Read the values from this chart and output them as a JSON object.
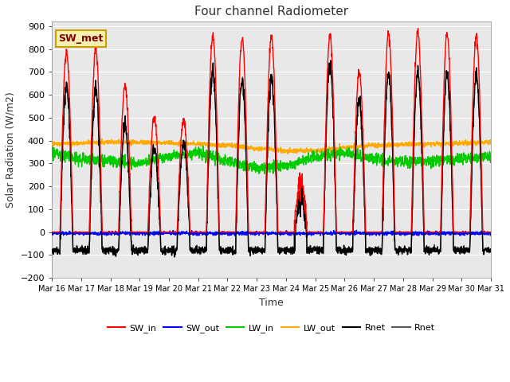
{
  "title": "Four channel Radiometer",
  "xlabel": "Time",
  "ylabel": "Solar Radiation (W/m2)",
  "ylim": [
    -200,
    920
  ],
  "yticks": [
    -200,
    -100,
    0,
    100,
    200,
    300,
    400,
    500,
    600,
    700,
    800,
    900
  ],
  "x_labels": [
    "Mar 16",
    "Mar 17",
    "Mar 18",
    "Mar 19",
    "Mar 20",
    "Mar 21",
    "Mar 22",
    "Mar 23",
    "Mar 24",
    "Mar 25",
    "Mar 26",
    "Mar 27",
    "Mar 28",
    "Mar 29",
    "Mar 30",
    "Mar 31"
  ],
  "annotation_label": "SW_met",
  "annotation_border_color": "#c8a000",
  "annotation_text_color": "#800000",
  "annotation_bg": "#f5f0b0",
  "plot_bg_color": "#e8e8e8",
  "grid_color": "#ffffff",
  "series": {
    "SW_in": {
      "color": "#ff0000",
      "label": "SW_in",
      "lw": 1.0
    },
    "SW_out": {
      "color": "#0000ff",
      "label": "SW_out",
      "lw": 1.0
    },
    "LW_in": {
      "color": "#00cc00",
      "label": "LW_in",
      "lw": 1.0
    },
    "LW_out": {
      "color": "#ffaa00",
      "label": "LW_out",
      "lw": 1.0
    },
    "Rnet": {
      "color": "#000000",
      "label": "Rnet",
      "lw": 1.0
    },
    "Rnet2": {
      "color": "#555555",
      "label": "Rnet",
      "lw": 1.0
    }
  }
}
